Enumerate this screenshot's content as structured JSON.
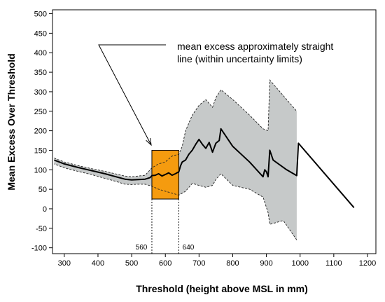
{
  "chart_data": {
    "type": "line",
    "title": "",
    "xlabel": "Threshold (height above MSL in mm)",
    "ylabel": "Mean Excess Over Threshold",
    "xlim": [
      265,
      1225
    ],
    "ylim": [
      -115,
      510
    ],
    "xticks": [
      300,
      400,
      500,
      600,
      700,
      800,
      900,
      1000,
      1100,
      1200
    ],
    "yticks": [
      -100,
      -50,
      0,
      50,
      100,
      150,
      200,
      250,
      300,
      350,
      400,
      450,
      500
    ],
    "grid": false,
    "series": [
      {
        "role": "mean_excess",
        "points": [
          [
            270,
            125
          ],
          [
            300,
            115
          ],
          [
            340,
            106
          ],
          [
            380,
            98
          ],
          [
            420,
            90
          ],
          [
            450,
            83
          ],
          [
            480,
            76
          ],
          [
            500,
            74
          ],
          [
            520,
            75
          ],
          [
            540,
            76
          ],
          [
            555,
            80
          ],
          [
            560,
            85
          ],
          [
            570,
            86
          ],
          [
            580,
            90
          ],
          [
            590,
            84
          ],
          [
            600,
            88
          ],
          [
            610,
            92
          ],
          [
            620,
            86
          ],
          [
            630,
            90
          ],
          [
            640,
            95
          ],
          [
            645,
            110
          ],
          [
            650,
            120
          ],
          [
            660,
            125
          ],
          [
            670,
            140
          ],
          [
            680,
            150
          ],
          [
            690,
            165
          ],
          [
            700,
            178
          ],
          [
            710,
            165
          ],
          [
            720,
            155
          ],
          [
            730,
            170
          ],
          [
            740,
            145
          ],
          [
            750,
            168
          ],
          [
            760,
            175
          ],
          [
            765,
            205
          ],
          [
            800,
            160
          ],
          [
            850,
            120
          ],
          [
            890,
            82
          ],
          [
            895,
            100
          ],
          [
            900,
            95
          ],
          [
            905,
            82
          ],
          [
            910,
            150
          ],
          [
            920,
            125
          ],
          [
            960,
            100
          ],
          [
            990,
            85
          ],
          [
            995,
            168
          ],
          [
            1160,
            3
          ]
        ]
      },
      {
        "role": "upper_bound",
        "points": [
          [
            270,
            130
          ],
          [
            300,
            120
          ],
          [
            340,
            111
          ],
          [
            380,
            103
          ],
          [
            420,
            96
          ],
          [
            450,
            90
          ],
          [
            480,
            84
          ],
          [
            500,
            82
          ],
          [
            520,
            84
          ],
          [
            540,
            86
          ],
          [
            560,
            105
          ],
          [
            580,
            115
          ],
          [
            600,
            120
          ],
          [
            620,
            135
          ],
          [
            640,
            140
          ],
          [
            650,
            160
          ],
          [
            660,
            200
          ],
          [
            680,
            240
          ],
          [
            700,
            265
          ],
          [
            720,
            280
          ],
          [
            740,
            260
          ],
          [
            750,
            285
          ],
          [
            765,
            305
          ],
          [
            800,
            280
          ],
          [
            850,
            240
          ],
          [
            890,
            205
          ],
          [
            905,
            200
          ],
          [
            910,
            330
          ],
          [
            950,
            290
          ],
          [
            990,
            250
          ]
        ]
      },
      {
        "role": "lower_bound",
        "points": [
          [
            990,
            -80
          ],
          [
            950,
            -30
          ],
          [
            910,
            -40
          ],
          [
            905,
            -10
          ],
          [
            890,
            30
          ],
          [
            850,
            50
          ],
          [
            800,
            60
          ],
          [
            765,
            90
          ],
          [
            750,
            75
          ],
          [
            740,
            60
          ],
          [
            720,
            55
          ],
          [
            700,
            60
          ],
          [
            680,
            65
          ],
          [
            660,
            45
          ],
          [
            650,
            40
          ],
          [
            640,
            35
          ],
          [
            620,
            40
          ],
          [
            600,
            45
          ],
          [
            580,
            50
          ],
          [
            560,
            58
          ],
          [
            540,
            63
          ],
          [
            520,
            63
          ],
          [
            500,
            62
          ],
          [
            480,
            63
          ],
          [
            450,
            71
          ],
          [
            420,
            78
          ],
          [
            380,
            88
          ],
          [
            340,
            96
          ],
          [
            300,
            105
          ],
          [
            270,
            115
          ]
        ]
      }
    ],
    "highlight_region": {
      "x_range": [
        560,
        640
      ],
      "y_range": [
        25,
        150
      ],
      "color": "#f59b0f",
      "edge_labels": [
        "560",
        "640"
      ]
    },
    "annotation": {
      "lines": [
        "mean excess approximately straight",
        "line (within uncertainty limits)"
      ]
    },
    "colors": {
      "band_fill": "#c6c9c9",
      "line": "#000000",
      "highlight": "#f59b0f"
    }
  }
}
